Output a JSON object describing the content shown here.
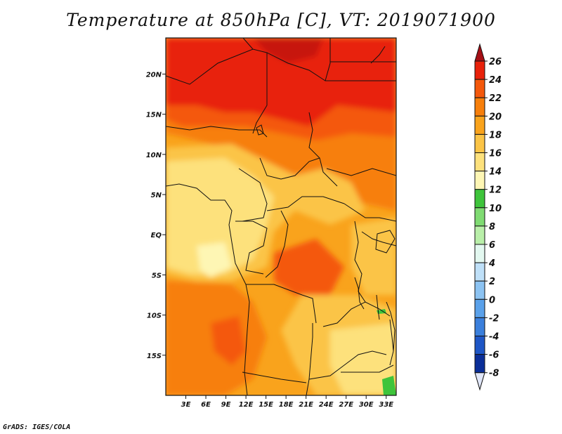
{
  "title": "Temperature at 850hPa [C], VT: 2019071900",
  "credit": "GrADS: IGES/COLA",
  "map": {
    "lon_range": [
      0,
      34.5
    ],
    "lat_range": [
      -20,
      24.5
    ],
    "lon_ticks": [
      {
        "value": 3,
        "label": "3E"
      },
      {
        "value": 6,
        "label": "6E"
      },
      {
        "value": 9,
        "label": "9E"
      },
      {
        "value": 12,
        "label": "12E"
      },
      {
        "value": 15,
        "label": "15E"
      },
      {
        "value": 18,
        "label": "18E"
      },
      {
        "value": 21,
        "label": "21E"
      },
      {
        "value": 24,
        "label": "24E"
      },
      {
        "value": 27,
        "label": "27E"
      },
      {
        "value": 30,
        "label": "30E"
      },
      {
        "value": 33,
        "label": "33E"
      }
    ],
    "lat_ticks": [
      {
        "value": 20,
        "label": "20N"
      },
      {
        "value": 15,
        "label": "15N"
      },
      {
        "value": 10,
        "label": "10N"
      },
      {
        "value": 5,
        "label": "5N"
      },
      {
        "value": 0,
        "label": "EQ"
      },
      {
        "value": -5,
        "label": "5S"
      },
      {
        "value": -10,
        "label": "10S"
      },
      {
        "value": -15,
        "label": "15S"
      }
    ]
  },
  "colorbar": {
    "levels": [
      26,
      24,
      22,
      20,
      18,
      16,
      14,
      12,
      10,
      8,
      6,
      4,
      2,
      0,
      -2,
      -4,
      -6,
      -8
    ],
    "labels": [
      "26",
      "24",
      "22",
      "20",
      "18",
      "16",
      "14",
      "12",
      "10",
      "8",
      "6",
      "4",
      "2",
      "0",
      "-2",
      "-4",
      "-6",
      "-8"
    ],
    "colors": [
      "#a50f15",
      "#e8210a",
      "#f4580b",
      "#f77f0b",
      "#f9a31c",
      "#fbc446",
      "#fde17c",
      "#fef6b4",
      "#3ec43b",
      "#7fdb72",
      "#b9efa9",
      "#e3f8f0",
      "#bfe0f8",
      "#8cc3f2",
      "#5aa1ea",
      "#3a7fdc",
      "#1e56c6",
      "#0a2e98",
      "#070a6a",
      "#e0e6f8"
    ]
  }
}
